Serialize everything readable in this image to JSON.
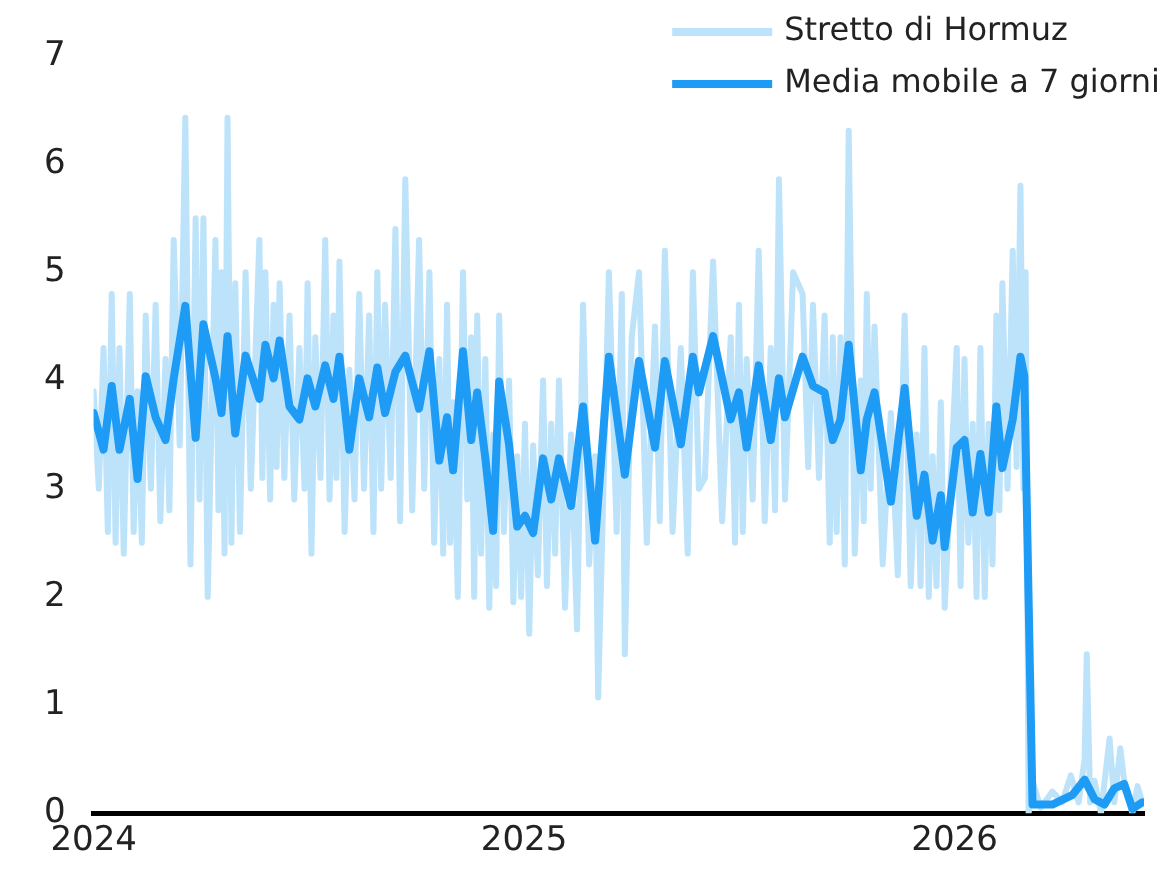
{
  "chart_data": {
    "type": "line",
    "legend": "top right",
    "grid": false,
    "marker": "none",
    "line_style": "solid",
    "xlim": [
      2024,
      2026.44
    ],
    "xticks": [
      2024,
      2025,
      2026
    ],
    "ylim": [
      0,
      7
    ],
    "yticks": [
      0,
      1,
      2,
      3,
      4,
      5,
      6,
      7
    ],
    "series": [
      {
        "name": "Stretto di Hormuz",
        "color": "#bde3fb",
        "x": [
          2024.0,
          2024.012,
          2024.023,
          2024.033,
          2024.042,
          2024.051,
          2024.06,
          2024.07,
          2024.084,
          2024.093,
          2024.102,
          2024.112,
          2024.121,
          2024.133,
          2024.144,
          2024.155,
          2024.167,
          2024.176,
          2024.186,
          2024.2,
          2024.213,
          2024.225,
          2024.237,
          2024.246,
          2024.255,
          2024.265,
          2024.283,
          2024.29,
          2024.297,
          2024.304,
          2024.311,
          2024.32,
          2024.329,
          2024.34,
          2024.353,
          2024.365,
          2024.385,
          2024.392,
          2024.399,
          2024.41,
          2024.418,
          2024.425,
          2024.432,
          2024.443,
          2024.455,
          2024.466,
          2024.478,
          2024.49,
          2024.497,
          2024.506,
          2024.515,
          2024.527,
          2024.538,
          2024.548,
          2024.557,
          2024.564,
          2024.571,
          2024.583,
          2024.594,
          2024.606,
          2024.617,
          2024.628,
          2024.64,
          2024.65,
          2024.659,
          2024.668,
          2024.677,
          2024.69,
          2024.701,
          2024.712,
          2024.724,
          2024.74,
          2024.756,
          2024.768,
          2024.78,
          2024.791,
          2024.803,
          2024.812,
          2024.821,
          2024.828,
          2024.835,
          2024.846,
          2024.858,
          2024.868,
          2024.877,
          2024.884,
          2024.891,
          2024.9,
          2024.91,
          2024.919,
          2024.928,
          2024.935,
          2024.942,
          2024.953,
          2024.965,
          2024.975,
          2024.984,
          2024.993,
          2025.002,
          2025.012,
          2025.021,
          2025.032,
          2025.044,
          2025.053,
          2025.063,
          2025.072,
          2025.081,
          2025.095,
          2025.109,
          2025.123,
          2025.137,
          2025.151,
          2025.165,
          2025.172,
          2025.197,
          2025.215,
          2025.227,
          2025.234,
          2025.25,
          2025.267,
          2025.285,
          2025.304,
          2025.315,
          2025.327,
          2025.345,
          2025.364,
          2025.38,
          2025.392,
          2025.406,
          2025.42,
          2025.439,
          2025.46,
          2025.48,
          2025.49,
          2025.499,
          2025.508,
          2025.517,
          2025.531,
          2025.545,
          2025.559,
          2025.573,
          2025.583,
          2025.592,
          2025.606,
          2025.625,
          2025.647,
          2025.66,
          2025.671,
          2025.685,
          2025.698,
          2025.71,
          2025.717,
          2025.726,
          2025.735,
          2025.745,
          2025.754,
          2025.768,
          2025.782,
          2025.789,
          2025.796,
          2025.805,
          2025.814,
          2025.833,
          2025.852,
          2025.868,
          2025.884,
          2025.898,
          2025.912,
          2025.921,
          2025.93,
          2025.94,
          2025.949,
          2025.958,
          2025.968,
          2025.977,
          2026.005,
          2026.014,
          2026.023,
          2026.032,
          2026.042,
          2026.051,
          2026.06,
          2026.07,
          2026.079,
          2026.088,
          2026.097,
          2026.104,
          2026.111,
          2026.123,
          2026.135,
          2026.144,
          2026.153,
          2026.16,
          2026.165,
          2026.172,
          2026.181,
          2026.2,
          2026.227,
          2026.25,
          2026.27,
          2026.288,
          2026.302,
          2026.307,
          2026.315,
          2026.325,
          2026.34,
          2026.36,
          2026.371,
          2026.385,
          2026.394,
          2026.413,
          2026.425,
          2026.436
        ],
        "values": [
          3.9,
          3.0,
          4.3,
          2.6,
          4.8,
          2.5,
          4.3,
          2.4,
          4.8,
          2.6,
          3.9,
          2.5,
          4.6,
          3.0,
          4.7,
          2.7,
          4.2,
          2.8,
          5.3,
          3.4,
          6.43,
          2.3,
          5.5,
          2.9,
          5.5,
          2.0,
          5.3,
          2.8,
          5.0,
          2.4,
          6.43,
          2.5,
          4.9,
          2.6,
          5.0,
          3.0,
          5.3,
          3.1,
          5.0,
          2.9,
          4.7,
          3.2,
          4.9,
          3.1,
          4.6,
          2.9,
          4.3,
          3.0,
          4.9,
          2.4,
          4.4,
          3.1,
          5.3,
          2.9,
          4.6,
          3.1,
          5.1,
          2.6,
          4.1,
          2.9,
          4.8,
          3.0,
          4.6,
          2.6,
          5.0,
          3.0,
          4.7,
          3.1,
          5.4,
          2.7,
          5.86,
          2.8,
          5.3,
          3.0,
          5.0,
          2.5,
          4.2,
          2.4,
          4.7,
          2.5,
          3.8,
          2.0,
          5.0,
          2.9,
          4.4,
          2.0,
          4.6,
          2.4,
          4.2,
          1.9,
          3.5,
          2.1,
          4.6,
          2.6,
          4.0,
          1.95,
          3.3,
          2.0,
          3.6,
          1.66,
          3.4,
          2.2,
          4.0,
          2.1,
          3.6,
          2.4,
          4.0,
          1.9,
          3.5,
          1.7,
          4.7,
          2.3,
          3.3,
          1.07,
          5.0,
          2.6,
          4.8,
          1.47,
          4.4,
          5.0,
          2.5,
          4.5,
          2.7,
          5.2,
          2.6,
          4.3,
          2.4,
          5.0,
          3.0,
          3.1,
          5.1,
          2.7,
          4.4,
          2.5,
          4.7,
          2.6,
          4.2,
          2.9,
          5.2,
          2.7,
          4.3,
          2.8,
          5.86,
          2.9,
          5.0,
          4.8,
          3.2,
          4.7,
          3.1,
          4.6,
          2.5,
          4.4,
          2.6,
          4.4,
          2.3,
          6.31,
          2.4,
          4.0,
          2.7,
          4.8,
          3.0,
          4.5,
          2.3,
          3.7,
          2.2,
          4.6,
          2.1,
          3.5,
          2.1,
          4.3,
          2.0,
          3.3,
          2.1,
          3.8,
          1.9,
          4.3,
          2.1,
          4.2,
          2.5,
          3.6,
          2.0,
          4.3,
          2.0,
          3.6,
          2.3,
          4.6,
          2.8,
          4.9,
          3.0,
          5.2,
          3.2,
          5.8,
          3.0,
          5.0,
          0.0,
          0.3,
          0.05,
          0.2,
          0.1,
          0.35,
          0.1,
          0.5,
          1.47,
          0.1,
          0.3,
          0.0,
          0.69,
          0.1,
          0.6,
          0.3,
          0.0,
          0.25,
          0.1
        ]
      },
      {
        "name": "Media mobile a 7 giorni",
        "color": "#1e9bf5",
        "x": [
          2024.0,
          2024.023,
          2024.042,
          2024.06,
          2024.084,
          2024.102,
          2024.121,
          2024.144,
          2024.167,
          2024.186,
          2024.213,
          2024.237,
          2024.255,
          2024.283,
          2024.297,
          2024.311,
          2024.329,
          2024.353,
          2024.385,
          2024.399,
          2024.418,
          2024.432,
          2024.455,
          2024.478,
          2024.497,
          2024.515,
          2024.538,
          2024.557,
          2024.571,
          2024.594,
          2024.617,
          2024.64,
          2024.659,
          2024.677,
          2024.701,
          2024.724,
          2024.756,
          2024.78,
          2024.803,
          2024.821,
          2024.835,
          2024.858,
          2024.877,
          2024.891,
          2024.91,
          2024.928,
          2024.942,
          2024.965,
          2024.984,
          2025.002,
          2025.021,
          2025.044,
          2025.063,
          2025.081,
          2025.109,
          2025.137,
          2025.165,
          2025.197,
          2025.234,
          2025.267,
          2025.304,
          2025.327,
          2025.364,
          2025.392,
          2025.406,
          2025.439,
          2025.48,
          2025.499,
          2025.517,
          2025.545,
          2025.573,
          2025.592,
          2025.606,
          2025.647,
          2025.671,
          2025.698,
          2025.717,
          2025.735,
          2025.754,
          2025.782,
          2025.796,
          2025.814,
          2025.852,
          2025.884,
          2025.912,
          2025.93,
          2025.949,
          2025.968,
          2025.977,
          2026.005,
          2026.023,
          2026.042,
          2026.06,
          2026.079,
          2026.097,
          2026.111,
          2026.135,
          2026.153,
          2026.162,
          2026.181,
          2026.227,
          2026.274,
          2026.302,
          2026.325,
          2026.348,
          2026.371,
          2026.394,
          2026.413,
          2026.436
        ],
        "values": [
          3.7,
          3.36,
          3.95,
          3.36,
          3.83,
          3.09,
          4.04,
          3.66,
          3.45,
          4.02,
          4.69,
          3.47,
          4.52,
          4.02,
          3.7,
          4.41,
          3.51,
          4.23,
          3.83,
          4.33,
          4.02,
          4.37,
          3.76,
          3.64,
          4.02,
          3.76,
          4.14,
          3.83,
          4.22,
          3.36,
          4.02,
          3.66,
          4.12,
          3.7,
          4.08,
          4.23,
          3.74,
          4.27,
          3.26,
          3.66,
          3.17,
          4.27,
          3.45,
          3.89,
          3.28,
          2.61,
          3.99,
          3.41,
          2.65,
          2.75,
          2.59,
          3.28,
          2.9,
          3.28,
          2.84,
          3.76,
          2.52,
          4.22,
          3.13,
          4.18,
          3.38,
          4.18,
          3.41,
          4.22,
          3.89,
          4.41,
          3.64,
          3.89,
          3.38,
          4.14,
          3.45,
          4.02,
          3.66,
          4.22,
          3.95,
          3.89,
          3.45,
          3.64,
          4.33,
          3.17,
          3.64,
          3.89,
          2.88,
          3.93,
          2.75,
          3.13,
          2.52,
          2.94,
          2.46,
          3.38,
          3.45,
          2.78,
          3.32,
          2.78,
          3.76,
          3.19,
          3.64,
          4.22,
          4.04,
          0.08,
          0.08,
          0.17,
          0.31,
          0.13,
          0.08,
          0.23,
          0.27,
          0.04,
          0.1
        ]
      }
    ]
  }
}
